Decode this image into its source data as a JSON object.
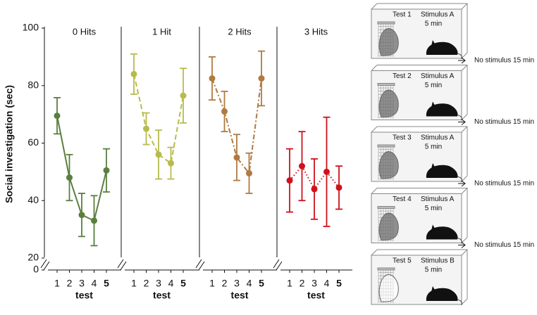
{
  "chart_data": [
    {
      "type": "line",
      "title": "0 Hits",
      "ylabel": "Social investigation (sec)",
      "xlabel": "test",
      "categories": [
        "1",
        "2",
        "3",
        "4",
        "5"
      ],
      "values": [
        69.5,
        48,
        35,
        33,
        50.5
      ],
      "errors": [
        6.3,
        8,
        7.5,
        8.7,
        7.5
      ],
      "color": "#5a7f3e",
      "line_style": "solid",
      "ylim": [
        20,
        100
      ],
      "yticks": [
        20,
        40,
        60,
        80,
        100
      ],
      "ybreak_tick": 0
    },
    {
      "type": "line",
      "title": "1 Hit",
      "xlabel": "test",
      "categories": [
        "1",
        "2",
        "3",
        "4",
        "5"
      ],
      "values": [
        84,
        65,
        56,
        53,
        76.5
      ],
      "errors": [
        7,
        5.5,
        8.5,
        5.5,
        9.5
      ],
      "color": "#b8bb4c",
      "line_style": "dashed",
      "ylim": [
        20,
        100
      ]
    },
    {
      "type": "line",
      "title": "2 Hits",
      "xlabel": "test",
      "categories": [
        "1",
        "2",
        "3",
        "4",
        "5"
      ],
      "values": [
        82.5,
        71,
        55,
        49.5,
        82.5
      ],
      "errors": [
        7.5,
        7,
        8,
        7,
        9.5
      ],
      "color": "#b07a40",
      "line_style": "dashdot",
      "ylim": [
        20,
        100
      ]
    },
    {
      "type": "line",
      "title": "3 Hits",
      "xlabel": "test",
      "categories": [
        "1",
        "2",
        "3",
        "4",
        "5"
      ],
      "values": [
        47,
        52,
        44,
        50,
        44.5
      ],
      "errors": [
        11,
        12,
        10.5,
        19,
        7.5
      ],
      "color": "#d0101a",
      "line_style": "dotted",
      "ylim": [
        20,
        100
      ]
    }
  ],
  "protocol": {
    "tests": [
      {
        "label": "Test 1",
        "stimulus": "Stimulus A",
        "duration": "5 min",
        "mouse": "grey"
      },
      {
        "label": "Test 2",
        "stimulus": "Stimulus A",
        "duration": "5 min",
        "mouse": "grey"
      },
      {
        "label": "Test 3",
        "stimulus": "Stimulus A",
        "duration": "5 min",
        "mouse": "grey"
      },
      {
        "label": "Test 4",
        "stimulus": "Stimulus A",
        "duration": "5 min",
        "mouse": "grey"
      },
      {
        "label": "Test 5",
        "stimulus": "Stimulus B",
        "duration": "5 min",
        "mouse": "white"
      }
    ],
    "intervals": [
      "No stimulus 15 min",
      "No stimulus 15 min",
      "No stimulus 15 min",
      "No stimulus 15 min"
    ]
  }
}
